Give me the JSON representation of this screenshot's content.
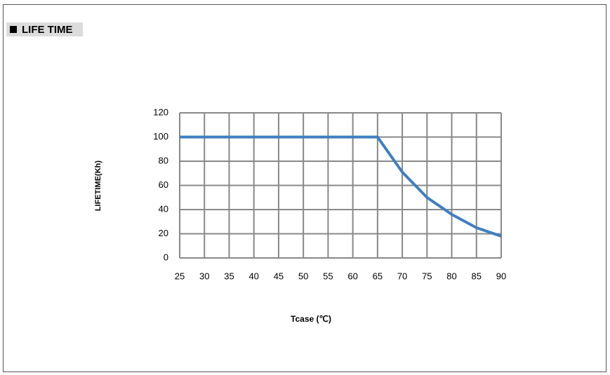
{
  "chart_data": {
    "type": "line",
    "title": "LIFE TIME",
    "x_label": "Tcase (℃)",
    "y_label": "LIFETIME(Kh)",
    "x": [
      25,
      30,
      35,
      40,
      45,
      50,
      55,
      60,
      65,
      70,
      75,
      80,
      85,
      90
    ],
    "series": [
      {
        "name": "LIFETIME",
        "color": "#3f7fc1",
        "values": [
          100,
          100,
          100,
          100,
          100,
          100,
          100,
          100,
          100,
          71,
          50,
          36,
          25,
          18
        ]
      }
    ],
    "xlim": [
      25,
      90
    ],
    "xticks": [
      25,
      30,
      35,
      40,
      45,
      50,
      55,
      60,
      65,
      70,
      75,
      80,
      85,
      90
    ],
    "ylim": [
      0,
      120
    ],
    "yticks": [
      0,
      20,
      40,
      60,
      80,
      100,
      120
    ],
    "grid": true
  }
}
